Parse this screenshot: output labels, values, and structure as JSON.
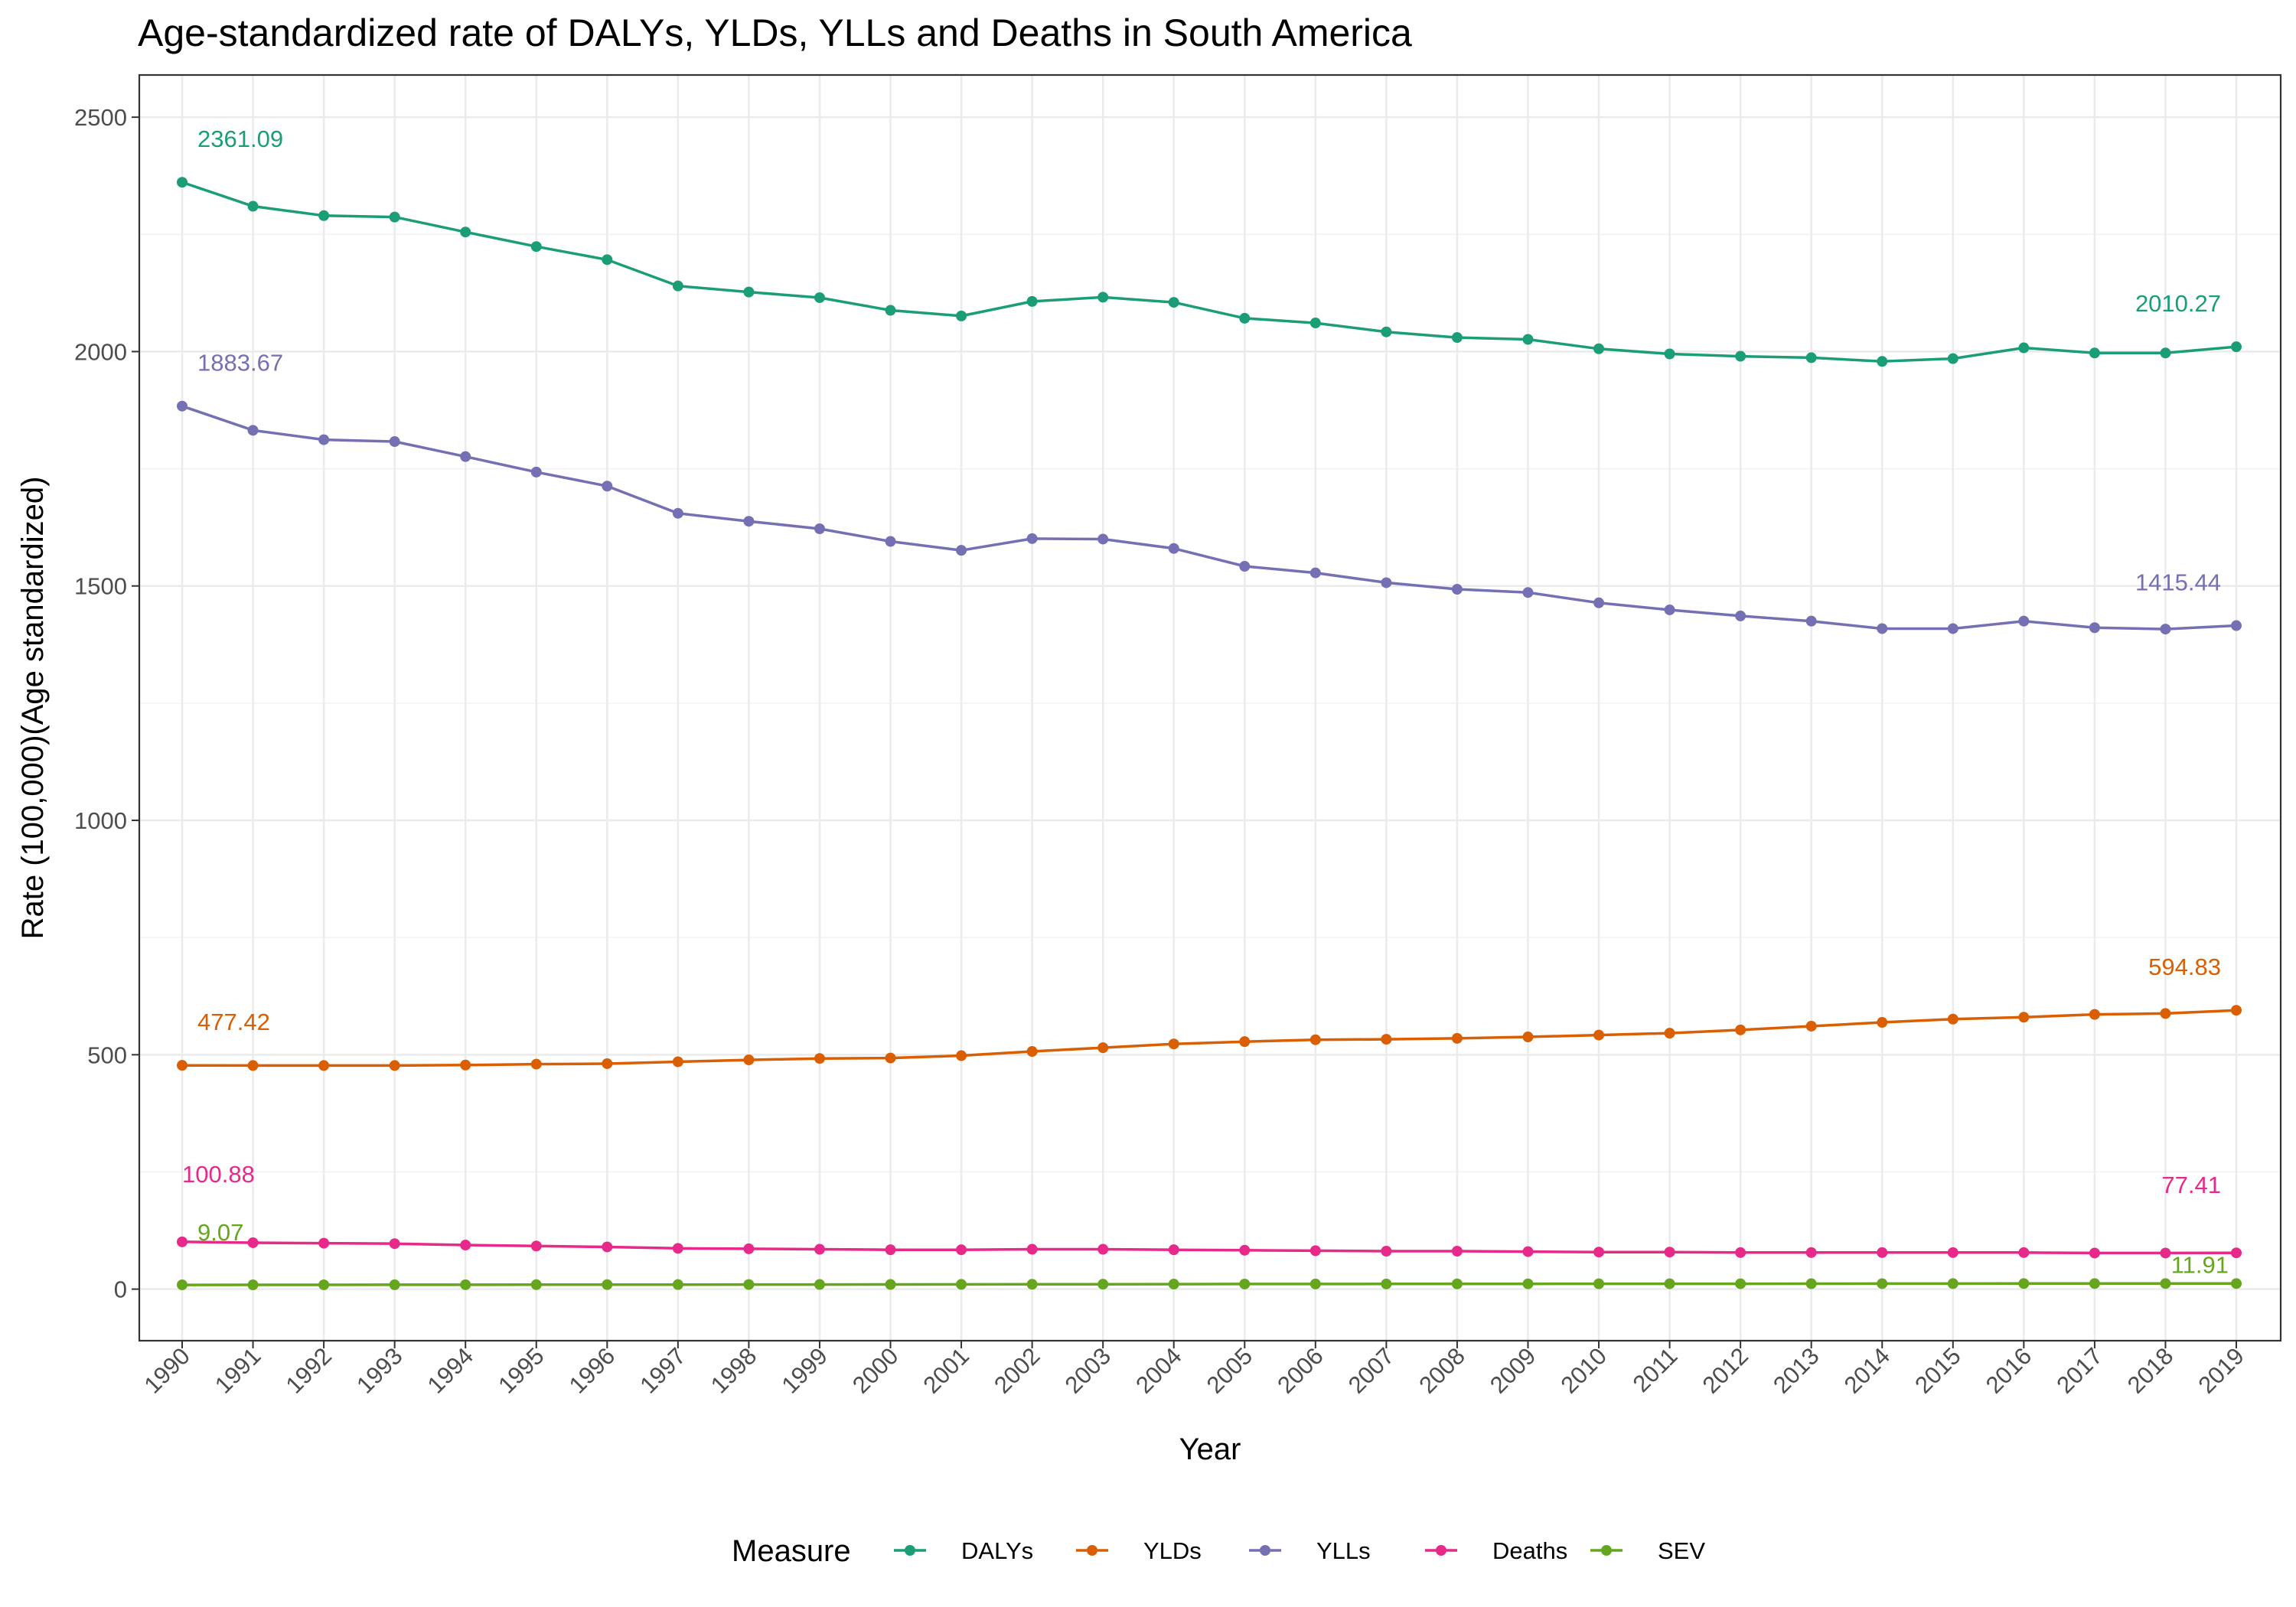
{
  "chart_data": {
    "type": "line",
    "title": "Age-standardized rate of DALYs, YLDs, YLLs and Deaths in South America",
    "xlabel": "Year",
    "ylabel": "Rate (100,000)(Age standardized)",
    "ylim": [
      -110,
      2590
    ],
    "yticks": [
      0,
      500,
      1000,
      1500,
      2000,
      2500
    ],
    "grid": true,
    "legend_title": "Measure",
    "legend_position": "bottom",
    "x": [
      1990,
      1991,
      1992,
      1993,
      1994,
      1995,
      1996,
      1997,
      1998,
      1999,
      2000,
      2001,
      2002,
      2003,
      2004,
      2005,
      2006,
      2007,
      2008,
      2009,
      2010,
      2011,
      2012,
      2013,
      2014,
      2015,
      2016,
      2017,
      2018,
      2019
    ],
    "series": [
      {
        "name": "DALYs",
        "color": "#1b9e77",
        "values": [
          2361.09,
          2310,
          2290,
          2287,
          2255,
          2224,
          2196,
          2140,
          2127,
          2115,
          2088,
          2076,
          2107,
          2116,
          2105,
          2071,
          2061,
          2042,
          2030,
          2026,
          2006,
          1995,
          1990,
          1987,
          1979,
          1985,
          2008,
          1997,
          1997,
          2010.27
        ],
        "label_first": "2361.09",
        "label_last": "2010.27"
      },
      {
        "name": "YLDs",
        "color": "#d95f02",
        "values": [
          477.42,
          477,
          477,
          477,
          478,
          480,
          481,
          485,
          489,
          492,
          493,
          498,
          507,
          515,
          523,
          528,
          532,
          533,
          535,
          538,
          542,
          546,
          553,
          561,
          569,
          576,
          580,
          586,
          588,
          594.83
        ],
        "label_first": "477.42",
        "label_last": "594.83"
      },
      {
        "name": "YLLs",
        "color": "#7570b3",
        "values": [
          1883.67,
          1832,
          1812,
          1808,
          1776,
          1743,
          1713,
          1655,
          1638,
          1622,
          1595,
          1576,
          1601,
          1600,
          1580,
          1542,
          1528,
          1507,
          1493,
          1486,
          1464,
          1449,
          1436,
          1425,
          1409,
          1409,
          1425,
          1411,
          1408,
          1415.44
        ],
        "label_first": "1883.67",
        "label_last": "1415.44"
      },
      {
        "name": "Deaths",
        "color": "#e7298a",
        "values": [
          100.88,
          99,
          98,
          97,
          94,
          92,
          90,
          87,
          86,
          85,
          84,
          84,
          85,
          85,
          84,
          83,
          82,
          81,
          81,
          80,
          79,
          79,
          78,
          78,
          78,
          78,
          78,
          77,
          77,
          77.41
        ],
        "label_first": "100.88",
        "label_last": "77.41"
      },
      {
        "name": "SEV",
        "color": "#66a61e",
        "values": [
          9.07,
          9.1,
          9.2,
          9.3,
          9.4,
          9.5,
          9.6,
          9.7,
          9.8,
          9.9,
          10.0,
          10.1,
          10.3,
          10.5,
          10.7,
          10.9,
          11.0,
          11.1,
          11.2,
          11.3,
          11.4,
          11.5,
          11.5,
          11.6,
          11.7,
          11.8,
          11.9,
          11.9,
          11.9,
          11.91
        ],
        "label_first": "9.07",
        "label_last": "11.91"
      }
    ]
  }
}
